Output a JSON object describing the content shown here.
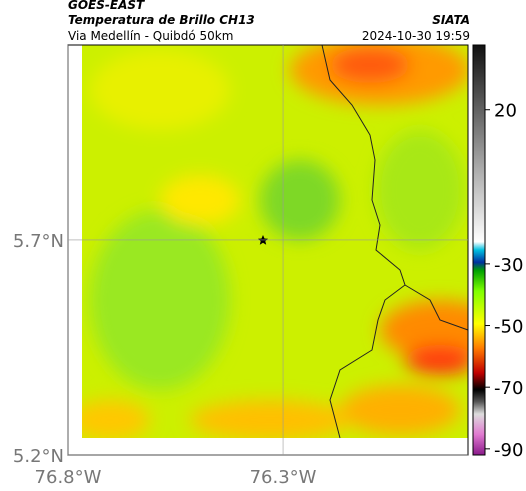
{
  "header": {
    "title": "GOES-EAST",
    "subtitle": "Temperatura de Brillo CH13",
    "location": "Via Medellín - Quibdó 50km",
    "source": "SIATA",
    "datetime": "2024-10-30 19:59"
  },
  "map": {
    "xlim": [
      -76.8,
      -75.87
    ],
    "ylim": [
      5.2,
      6.153
    ],
    "xticks": [
      {
        "value": -76.8,
        "label": "76.8°W"
      },
      {
        "value": -76.3,
        "label": "76.3°W"
      }
    ],
    "yticks": [
      {
        "value": 5.7,
        "label": "5.7°N"
      },
      {
        "value": 5.2,
        "label": "5.2°N"
      }
    ],
    "colorbar": {
      "lim": [
        -92,
        41
      ],
      "ticks": [
        20,
        -30,
        -50,
        -70,
        -90
      ]
    }
  }
}
